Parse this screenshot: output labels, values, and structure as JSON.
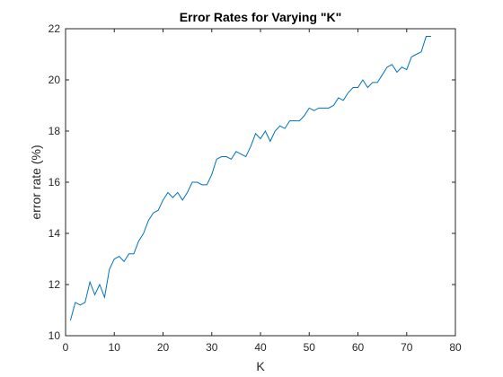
{
  "chart_data": {
    "type": "line",
    "title": "Error Rates for Varying \"K\"",
    "xlabel": "K",
    "ylabel": "error rate (%)",
    "xlim": [
      0,
      80
    ],
    "ylim": [
      10,
      22
    ],
    "xticks": [
      "0",
      "10",
      "20",
      "30",
      "40",
      "50",
      "60",
      "70",
      "80"
    ],
    "yticks": [
      "10",
      "12",
      "14",
      "16",
      "18",
      "20",
      "22"
    ],
    "grid": false,
    "legend": "none",
    "line_color": "#0072BD",
    "series": [
      {
        "x": [
          1,
          2,
          3,
          4,
          5,
          6,
          7,
          8,
          9,
          10,
          11,
          12,
          13,
          14,
          15,
          16,
          17,
          18,
          19,
          20,
          21,
          22,
          23,
          24,
          25,
          26,
          27,
          28,
          29,
          30,
          31,
          32,
          33,
          34,
          35,
          36,
          37,
          38,
          39,
          40,
          41,
          42,
          43,
          44,
          45,
          46,
          47,
          48,
          49,
          50,
          51,
          52,
          53,
          54,
          55,
          56,
          57,
          58,
          59,
          60,
          61,
          62,
          63,
          64,
          65,
          66,
          67,
          68,
          69,
          70,
          71,
          72,
          73,
          74,
          75
        ],
        "values": [
          10.6,
          11.3,
          11.2,
          11.3,
          12.1,
          11.6,
          12.0,
          11.5,
          12.6,
          13.0,
          13.1,
          12.9,
          13.2,
          13.2,
          13.7,
          14.0,
          14.5,
          14.8,
          14.9,
          15.3,
          15.6,
          15.4,
          15.6,
          15.3,
          15.6,
          16.0,
          16.0,
          15.9,
          15.9,
          16.3,
          16.9,
          17.0,
          17.0,
          16.9,
          17.2,
          17.1,
          17.0,
          17.4,
          17.9,
          17.7,
          18.0,
          17.6,
          18.0,
          18.2,
          18.1,
          18.4,
          18.4,
          18.4,
          18.6,
          18.9,
          18.8,
          18.9,
          18.9,
          18.9,
          19.0,
          19.3,
          19.2,
          19.5,
          19.7,
          19.7,
          20.0,
          19.7,
          19.9,
          19.9,
          20.2,
          20.5,
          20.6,
          20.3,
          20.5,
          20.4,
          20.9,
          21.0,
          21.1,
          21.7,
          21.7
        ]
      }
    ]
  }
}
